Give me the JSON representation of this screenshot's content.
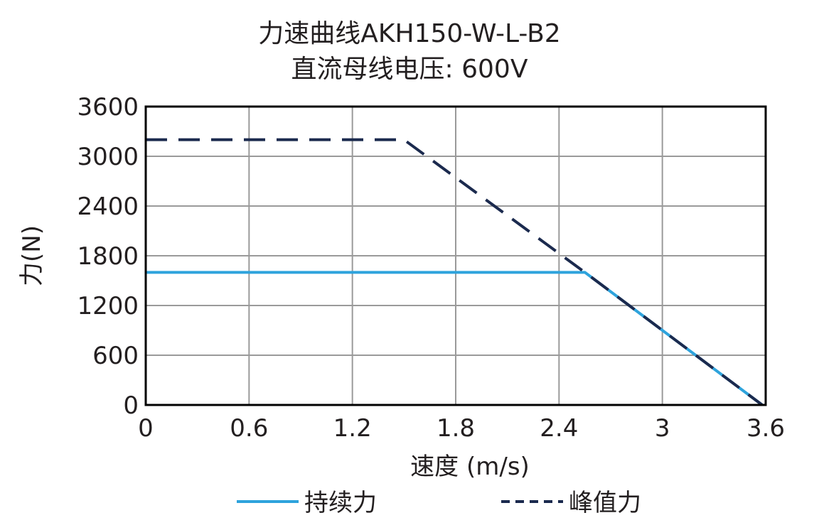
{
  "chart_data": {
    "type": "line",
    "title": "力速曲线AKH150-W-L-B2",
    "subtitle": "直流母线电压: 600V",
    "xlabel": "速度 (m/s)",
    "ylabel": "力(N)",
    "xlim": [
      0,
      3.6
    ],
    "ylim": [
      0,
      3600
    ],
    "x_ticks": [
      "0",
      "0.6",
      "1.2",
      "1.8",
      "2.4",
      "3",
      "3.6"
    ],
    "y_ticks": [
      "0",
      "600",
      "1200",
      "1800",
      "2400",
      "3000",
      "3600"
    ],
    "grid": true,
    "legend_position": "bottom",
    "series": [
      {
        "name": "持续力",
        "style": "solid",
        "color": "#2ea3dc",
        "points": [
          [
            0,
            1600
          ],
          [
            2.55,
            1600
          ],
          [
            3.58,
            0
          ]
        ]
      },
      {
        "name": "峰值力",
        "style": "dashed",
        "color": "#1b2a4e",
        "points": [
          [
            0,
            3200
          ],
          [
            1.5,
            3200
          ],
          [
            2.55,
            1600
          ],
          [
            3.58,
            0
          ]
        ]
      }
    ]
  }
}
